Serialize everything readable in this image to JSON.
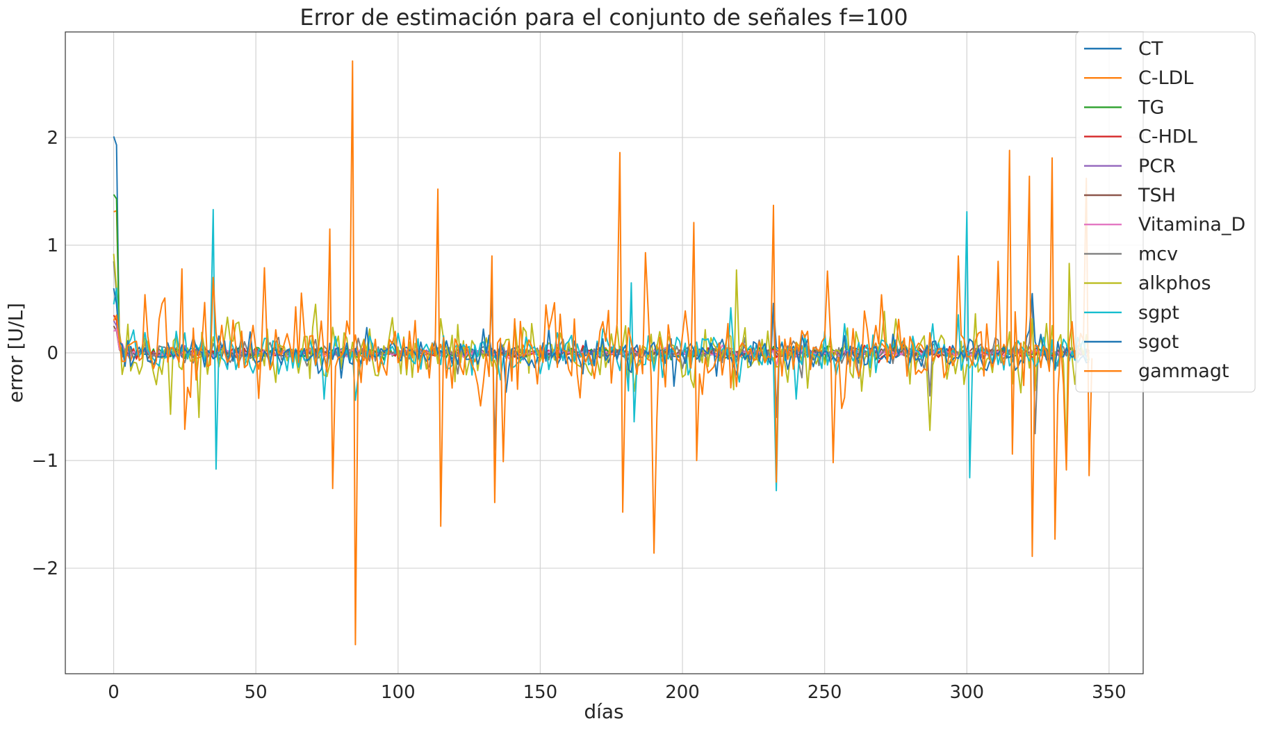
{
  "chart_data": {
    "type": "line",
    "title": "Error de estimación para el conjunto de señales f=100",
    "xlabel": "días",
    "ylabel": "error  [U/L]",
    "xlim": [
      -17,
      362
    ],
    "ylim": [
      -2.98,
      2.98
    ],
    "xticks": [
      0,
      50,
      100,
      150,
      200,
      250,
      300,
      350
    ],
    "yticks": [
      -2,
      -1,
      0,
      1,
      2
    ],
    "ytick_labels": [
      "−2",
      "−1",
      "0",
      "1",
      "2"
    ],
    "grid": true,
    "legend_position": "top-right",
    "series": [
      {
        "name": "CT",
        "color": "#1f77b4",
        "x_end": 343,
        "amplitude": 0.03,
        "noise": 0.04,
        "start": [
          2.01,
          1.93,
          0.05
        ],
        "spikes": []
      },
      {
        "name": "C-LDL",
        "color": "#ff7f0e",
        "x_end": 343,
        "amplitude": 0.04,
        "noise": 0.05,
        "start": [
          1.31,
          1.32,
          0.2
        ],
        "spikes": []
      },
      {
        "name": "TG",
        "color": "#2ca02c",
        "x_end": 343,
        "amplitude": 0.03,
        "noise": 0.04,
        "start": [
          1.47,
          1.43,
          0.1
        ],
        "spikes": [
          [
            45,
            0.1
          ]
        ]
      },
      {
        "name": "C-HDL",
        "color": "#d62728",
        "x_end": 343,
        "amplitude": 0.02,
        "noise": 0.03,
        "start": [
          0.35,
          0.3,
          0.05
        ],
        "spikes": []
      },
      {
        "name": "PCR",
        "color": "#9467bd",
        "x_end": 343,
        "amplitude": 0.02,
        "noise": 0.03,
        "start": [
          0.3,
          0.25,
          0.05
        ],
        "spikes": []
      },
      {
        "name": "TSH",
        "color": "#8c564b",
        "x_end": 343,
        "amplitude": 0.02,
        "noise": 0.03,
        "start": [
          0.25,
          0.2,
          0.03
        ],
        "spikes": []
      },
      {
        "name": "Vitamina_D",
        "color": "#e377c2",
        "x_end": 343,
        "amplitude": 0.02,
        "noise": 0.03,
        "start": [
          0.2,
          0.22,
          0.03
        ],
        "spikes": [
          [
            233,
            -0.12
          ]
        ]
      },
      {
        "name": "mcv",
        "color": "#7f7f7f",
        "x_end": 343,
        "amplitude": 0.05,
        "noise": 0.08,
        "start": [
          0.85,
          0.55,
          0.1
        ],
        "spikes": [
          [
            133,
            0.55
          ],
          [
            134,
            -0.9
          ],
          [
            232,
            0.45
          ],
          [
            233,
            -0.6
          ],
          [
            323,
            0.55
          ],
          [
            324,
            -0.75
          ],
          [
            287,
            -0.4
          ]
        ]
      },
      {
        "name": "alkphos",
        "color": "#bcbd22",
        "x_end": 343,
        "amplitude": 0.12,
        "noise": 0.22,
        "start": [
          0.92,
          0.6,
          0.2
        ],
        "spikes": [
          [
            20,
            -0.57
          ],
          [
            30,
            -0.6
          ],
          [
            219,
            0.77
          ],
          [
            287,
            -0.72
          ],
          [
            336,
            0.83
          ],
          [
            335,
            -0.97
          ]
        ]
      },
      {
        "name": "sgpt",
        "color": "#17becf",
        "x_end": 343,
        "amplitude": 0.1,
        "noise": 0.15,
        "start": [
          0.45,
          0.6,
          0.1
        ],
        "spikes": [
          [
            35,
            1.33
          ],
          [
            36,
            -1.08
          ],
          [
            300,
            1.31
          ],
          [
            301,
            -1.16
          ],
          [
            233,
            -1.28
          ],
          [
            182,
            0.65
          ],
          [
            183,
            -0.64
          ]
        ]
      },
      {
        "name": "sgot",
        "color": "#1f77b4",
        "x_end": 343,
        "amplitude": 0.09,
        "noise": 0.12,
        "start": [
          0.6,
          0.45,
          0.1
        ],
        "spikes": [
          [
            232,
            0.46
          ],
          [
            323,
            0.55
          ]
        ]
      },
      {
        "name": "gammagt",
        "color": "#ff7f0e",
        "x_end": 344,
        "amplitude": 0.2,
        "noise": 0.28,
        "start": [
          0.3,
          0.35,
          0.1
        ],
        "spikes": [
          [
            24,
            0.78
          ],
          [
            25,
            -0.71
          ],
          [
            35,
            0.7
          ],
          [
            53,
            0.79
          ],
          [
            76,
            1.15
          ],
          [
            77,
            -1.26
          ],
          [
            84,
            2.71
          ],
          [
            85,
            -2.71
          ],
          [
            114,
            1.52
          ],
          [
            115,
            -1.61
          ],
          [
            133,
            0.9
          ],
          [
            134,
            -1.39
          ],
          [
            137,
            -1.01
          ],
          [
            178,
            1.86
          ],
          [
            179,
            -1.48
          ],
          [
            190,
            -1.86
          ],
          [
            187,
            0.93
          ],
          [
            204,
            1.21
          ],
          [
            205,
            -1.0
          ],
          [
            232,
            1.37
          ],
          [
            233,
            -1.2
          ],
          [
            251,
            0.76
          ],
          [
            253,
            -1.02
          ],
          [
            315,
            1.88
          ],
          [
            316,
            -0.94
          ],
          [
            322,
            1.64
          ],
          [
            323,
            -1.89
          ],
          [
            330,
            1.81
          ],
          [
            331,
            -1.73
          ],
          [
            342,
            1.62
          ],
          [
            343,
            -1.14
          ],
          [
            297,
            0.9
          ],
          [
            311,
            0.85
          ]
        ]
      }
    ]
  }
}
